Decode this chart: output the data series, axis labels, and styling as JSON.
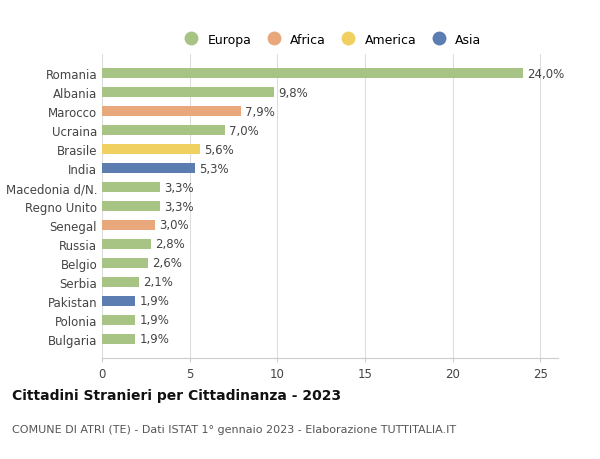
{
  "countries": [
    "Romania",
    "Albania",
    "Marocco",
    "Ucraina",
    "Brasile",
    "India",
    "Macedonia d/N.",
    "Regno Unito",
    "Senegal",
    "Russia",
    "Belgio",
    "Serbia",
    "Pakistan",
    "Polonia",
    "Bulgaria"
  ],
  "values": [
    24.0,
    9.8,
    7.9,
    7.0,
    5.6,
    5.3,
    3.3,
    3.3,
    3.0,
    2.8,
    2.6,
    2.1,
    1.9,
    1.9,
    1.9
  ],
  "labels": [
    "24,0%",
    "9,8%",
    "7,9%",
    "7,0%",
    "5,6%",
    "5,3%",
    "3,3%",
    "3,3%",
    "3,0%",
    "2,8%",
    "2,6%",
    "2,1%",
    "1,9%",
    "1,9%",
    "1,9%"
  ],
  "continents": [
    "Europa",
    "Europa",
    "Africa",
    "Europa",
    "America",
    "Asia",
    "Europa",
    "Europa",
    "Africa",
    "Europa",
    "Europa",
    "Europa",
    "Asia",
    "Europa",
    "Europa"
  ],
  "colors": {
    "Europa": "#a8c484",
    "Africa": "#e8a87c",
    "America": "#f0d060",
    "Asia": "#5b7db1"
  },
  "title": "Cittadini Stranieri per Cittadinanza - 2023",
  "subtitle": "COMUNE DI ATRI (TE) - Dati ISTAT 1° gennaio 2023 - Elaborazione TUTTITALIA.IT",
  "xlim": [
    0,
    26
  ],
  "xticks": [
    0,
    5,
    10,
    15,
    20,
    25
  ],
  "background_color": "#ffffff",
  "grid_color": "#dddddd",
  "bar_height": 0.55,
  "title_fontsize": 10,
  "subtitle_fontsize": 8,
  "tick_fontsize": 8.5,
  "label_fontsize": 8.5
}
